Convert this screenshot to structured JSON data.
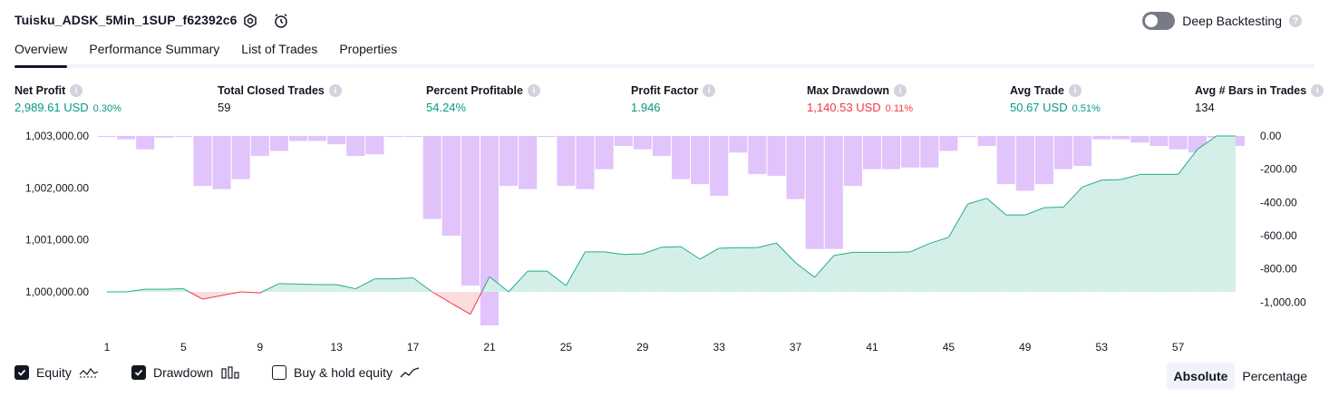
{
  "header": {
    "strategy_name": "Tuisku_ADSK_5Min_1SUP_f62392c6",
    "settings_icon": "settings-icon",
    "alert_icon": "alarm-add-icon",
    "deep_backtesting_label": "Deep Backtesting",
    "deep_backtesting_enabled": false,
    "help_glyph": "?"
  },
  "tabs": [
    {
      "label": "Overview",
      "active": true
    },
    {
      "label": "Performance Summary",
      "active": false
    },
    {
      "label": "List of Trades",
      "active": false
    },
    {
      "label": "Properties",
      "active": false
    }
  ],
  "metrics": {
    "net_profit": {
      "label": "Net Profit",
      "value": "2,989.61 USD",
      "pct": "0.30%"
    },
    "total_closed_trades": {
      "label": "Total Closed Trades",
      "value": "59"
    },
    "percent_profitable": {
      "label": "Percent Profitable",
      "value": "54.24%"
    },
    "profit_factor": {
      "label": "Profit Factor",
      "value": "1.946"
    },
    "max_drawdown": {
      "label": "Max Drawdown",
      "value": "1,140.53 USD",
      "pct": "0.11%"
    },
    "avg_trade": {
      "label": "Avg Trade",
      "value": "50.67 USD",
      "pct": "0.51%"
    },
    "avg_bars": {
      "label": "Avg # Bars in Trades",
      "value": "134"
    },
    "info_glyph": "i"
  },
  "colors": {
    "positive": "#089981",
    "negative": "#f23645",
    "drawdown_bar": "#e1c4fb",
    "equity_line_up": "#22ab94",
    "equity_line_down": "#f23645",
    "equity_fill_up": "#d4efe8",
    "equity_fill_down": "#fbdddf"
  },
  "chart_data": {
    "type": "area",
    "left_axis": {
      "ticks": [
        1000000,
        1001000,
        1002000,
        1003000
      ],
      "tick_labels": [
        "1,000,000.00",
        "1,001,000.00",
        "1,002,000.00",
        "1,003,000.00"
      ],
      "ylim": [
        999400,
        1003000
      ]
    },
    "right_axis": {
      "ticks": [
        0,
        -200,
        -400,
        -600,
        -800,
        -1000
      ],
      "tick_labels": [
        "0.00",
        "-200.00",
        "-400.00",
        "-600.00",
        "-800.00",
        "-1,000.00"
      ],
      "ylim": [
        -1140,
        0
      ]
    },
    "x_tick_labels": [
      "1",
      "5",
      "9",
      "13",
      "17",
      "21",
      "25",
      "29",
      "33",
      "37",
      "41",
      "45",
      "49",
      "53",
      "57"
    ],
    "x_ticks": [
      1,
      5,
      9,
      13,
      17,
      21,
      25,
      29,
      33,
      37,
      41,
      45,
      49,
      53,
      57
    ],
    "series": [
      {
        "name": "Equity",
        "x": [
          1,
          2,
          3,
          4,
          5,
          6,
          7,
          8,
          9,
          10,
          11,
          12,
          13,
          14,
          15,
          16,
          17,
          18,
          19,
          20,
          21,
          22,
          23,
          24,
          25,
          26,
          27,
          28,
          29,
          30,
          31,
          32,
          33,
          34,
          35,
          36,
          37,
          38,
          39,
          40,
          41,
          42,
          43,
          44,
          45,
          46,
          47,
          48,
          49,
          50,
          51,
          52,
          53,
          54,
          55,
          56,
          57,
          58,
          59,
          60
        ],
        "values": [
          1000000,
          1000000,
          1000050,
          1000050,
          1000060,
          999860,
          999930,
          1000000,
          999980,
          1000160,
          1000150,
          1000140,
          1000140,
          1000060,
          1000250,
          1000250,
          1000270,
          1000000,
          999780,
          999570,
          1000290,
          1000000,
          1000400,
          1000400,
          1000120,
          1000770,
          1000770,
          1000720,
          1000730,
          1000860,
          1000870,
          1000630,
          1000840,
          1000850,
          1000850,
          1000940,
          1000560,
          1000280,
          1000700,
          1000760,
          1000760,
          1000760,
          1000770,
          1000930,
          1001050,
          1001690,
          1001800,
          1001480,
          1001480,
          1001620,
          1001630,
          1002020,
          1002150,
          1002160,
          1002260,
          1002260,
          1002260,
          1002740,
          1003000,
          1003000
        ]
      },
      {
        "name": "Drawdown",
        "x": [
          1,
          2,
          3,
          4,
          5,
          6,
          7,
          8,
          9,
          10,
          11,
          12,
          13,
          14,
          15,
          16,
          17,
          18,
          19,
          20,
          21,
          22,
          23,
          24,
          25,
          26,
          27,
          28,
          29,
          30,
          31,
          32,
          33,
          34,
          35,
          36,
          37,
          38,
          39,
          40,
          41,
          42,
          43,
          44,
          45,
          46,
          47,
          48,
          49,
          50,
          51,
          52,
          53,
          54,
          55,
          56,
          57,
          58,
          59,
          60
        ],
        "values": [
          -5,
          -20,
          -80,
          -10,
          -5,
          -300,
          -320,
          -260,
          -120,
          -90,
          -30,
          -30,
          -50,
          -120,
          -110,
          0,
          -5,
          -500,
          -600,
          -900,
          -1140,
          -300,
          -320,
          0,
          -300,
          -320,
          -200,
          -60,
          -80,
          -120,
          -260,
          -290,
          -360,
          -100,
          -230,
          -240,
          -380,
          -680,
          -680,
          -300,
          -200,
          -200,
          -190,
          -190,
          -90,
          -5,
          -60,
          -290,
          -330,
          -290,
          -200,
          -180,
          -20,
          -20,
          -40,
          -60,
          -80,
          -100,
          -10,
          -60
        ]
      }
    ],
    "legend": [
      {
        "label": "Equity",
        "checked": true,
        "icon": "equity-line-icon"
      },
      {
        "label": "Drawdown",
        "checked": true,
        "icon": "drawdown-bars-icon"
      },
      {
        "label": "Buy & hold equity",
        "checked": false,
        "icon": "buy-hold-line-icon"
      }
    ],
    "scale_modes": [
      {
        "label": "Absolute",
        "selected": true
      },
      {
        "label": "Percentage",
        "selected": false
      }
    ],
    "grid": false,
    "legend_position": "bottom-left"
  }
}
